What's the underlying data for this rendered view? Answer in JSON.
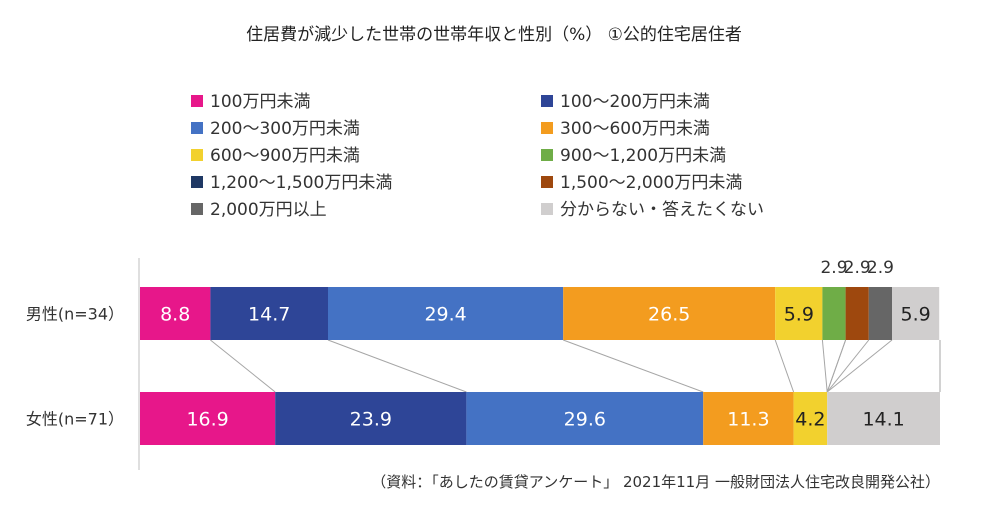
{
  "chart_data": {
    "type": "bar",
    "orientation": "horizontal",
    "stacked": true,
    "title": "住居費が減少した世帯の世帯年収と性別（%） ①公的住宅居住者",
    "categories": [
      "男性(n=34）",
      "女性(n=71）"
    ],
    "series": [
      {
        "name": "100万円未満",
        "color": "#e7178a",
        "values": [
          8.8,
          16.9
        ]
      },
      {
        "name": "100～200万円未満",
        "color": "#2e4597",
        "values": [
          14.7,
          23.9
        ]
      },
      {
        "name": "200～300万円未満",
        "color": "#4472c4",
        "values": [
          29.4,
          29.6
        ]
      },
      {
        "name": "300～600万円未満",
        "color": "#f39c1f",
        "values": [
          26.5,
          11.3
        ]
      },
      {
        "name": "600～900万円未満",
        "color": "#f2d12e",
        "values": [
          5.9,
          4.2
        ]
      },
      {
        "name": "900～1,200万円未満",
        "color": "#6fad47",
        "values": [
          2.9,
          0
        ]
      },
      {
        "name": "1,200～1,500万円未満",
        "color": "#1f3864",
        "values": [
          0,
          0
        ]
      },
      {
        "name": "1,500～2,000万円未満",
        "color": "#9e480e",
        "values": [
          2.9,
          0
        ]
      },
      {
        "name": "2,000万円以上",
        "color": "#666666",
        "values": [
          2.9,
          0
        ]
      },
      {
        "name": "分からない・答えたくない",
        "color": "#d0cece",
        "values": [
          5.9,
          14.1
        ]
      }
    ],
    "data_labels": [
      [
        "8.8",
        "14.7",
        "29.4",
        "26.5",
        "5.9",
        "2.9",
        "",
        "2.9",
        "2.9",
        "5.9"
      ],
      [
        "16.9",
        "23.9",
        "29.6",
        "11.3",
        "4.2",
        "",
        "",
        "",
        "",
        "14.1"
      ]
    ],
    "label_above": [
      false,
      false,
      false,
      false,
      false,
      true,
      false,
      true,
      true,
      false
    ],
    "dark_label": [
      false,
      false,
      false,
      false,
      true,
      false,
      false,
      false,
      false,
      true
    ],
    "xlim": [
      0,
      100
    ],
    "legend_position": "top",
    "series_lines": true,
    "source": "（資料：「あしたの賃貸アンケート」 2021年11月 一般財団法人住宅改良開発公社）"
  }
}
